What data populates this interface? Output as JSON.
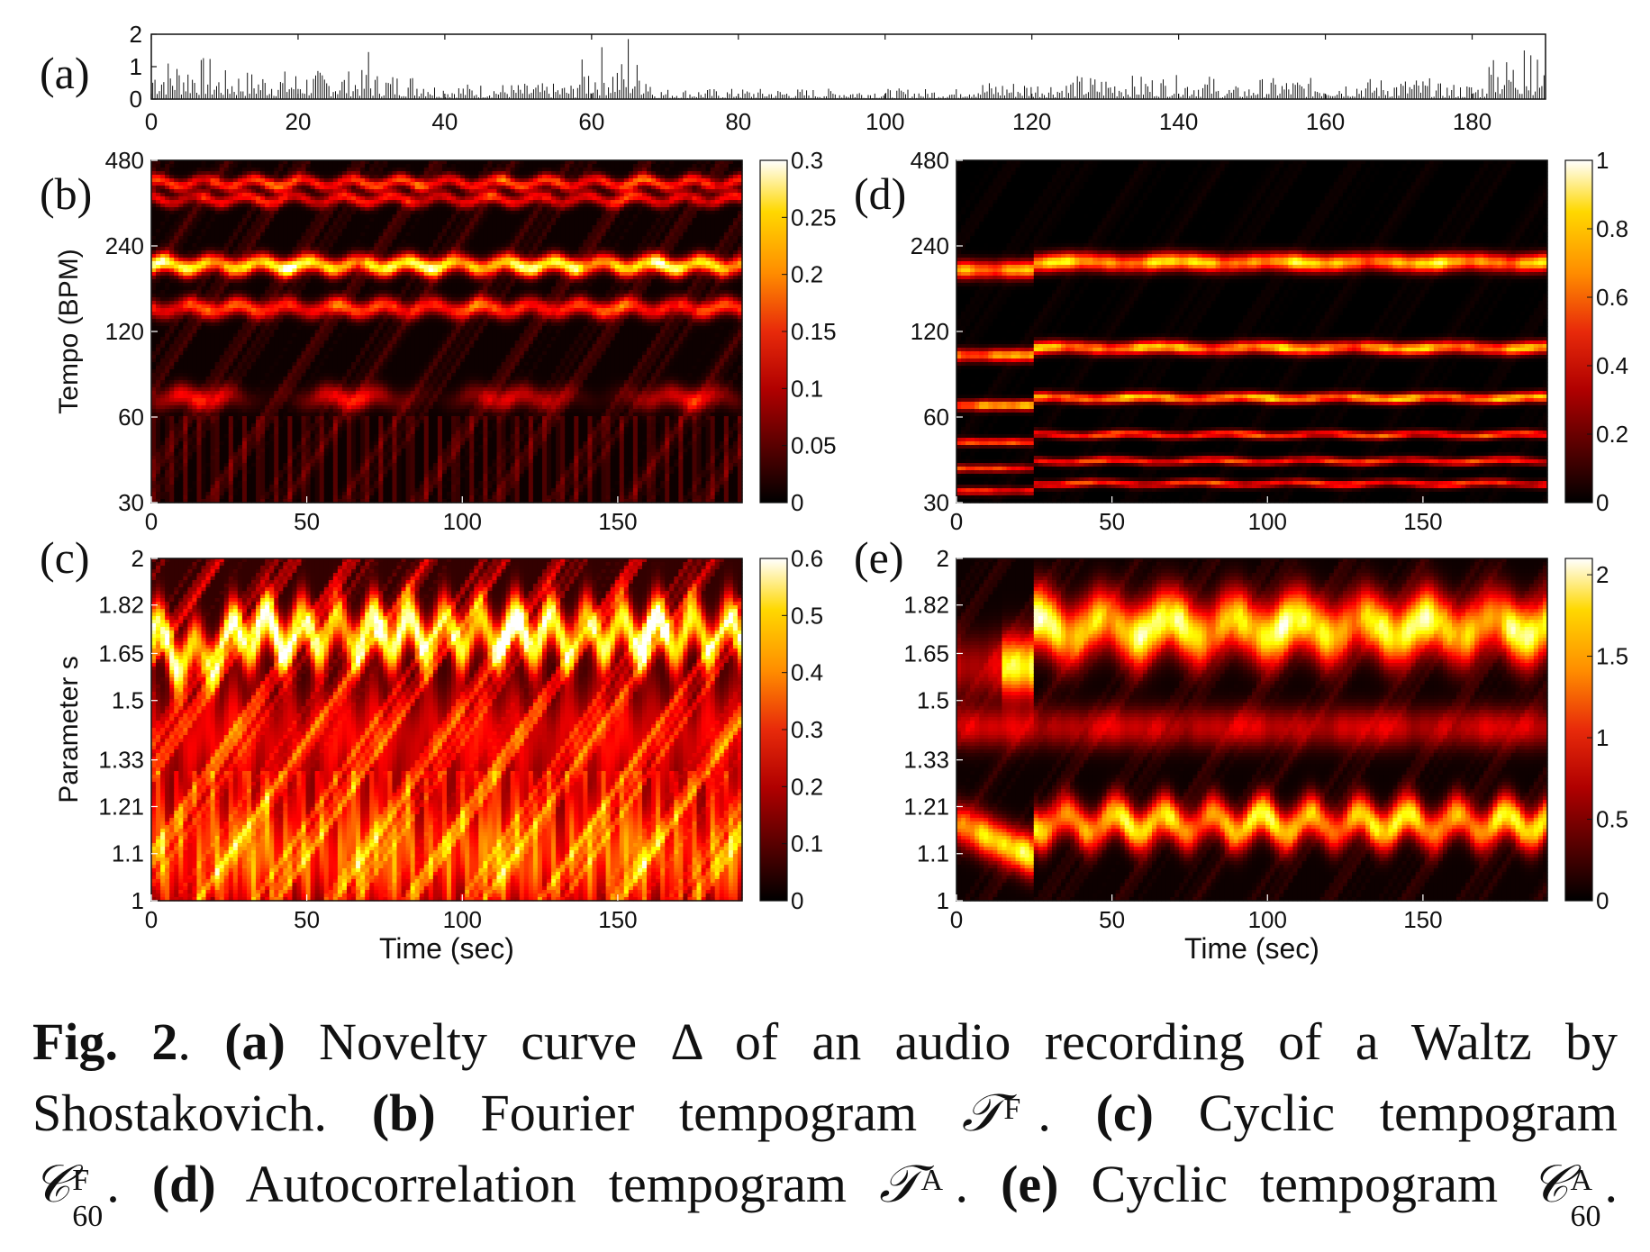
{
  "figure": {
    "panel_labels": [
      "(a)",
      "(b)",
      "(c)",
      "(d)",
      "(e)"
    ],
    "caption": {
      "fig_label": "Fig. 2",
      "line1": [
        {
          "t": ".  ",
          "b": false
        },
        {
          "t": "(a)",
          "b": true
        },
        {
          "t": " Novelty curve Δ of an audio recording of a Waltz by",
          "b": false
        }
      ],
      "line2": [
        {
          "t": "Shostakovich.  ",
          "b": false
        },
        {
          "t": "(b)",
          "b": true
        },
        {
          "t": " Fourier tempogram ",
          "b": false
        },
        {
          "t": "𝒯",
          "m": true,
          "sup": "F"
        },
        {
          "t": ". ",
          "b": false
        },
        {
          "t": "(c)",
          "b": true
        },
        {
          "t": " Cyclic tempogram",
          "b": false
        }
      ],
      "line3": [
        {
          "t": "𝒞",
          "m": true,
          "sup": "F",
          "sub": "60"
        },
        {
          "t": ". ",
          "b": false
        },
        {
          "t": "(d)",
          "b": true
        },
        {
          "t": " Autocorrelation tempogram ",
          "b": false
        },
        {
          "t": "𝒯",
          "m": true,
          "sup": "A"
        },
        {
          "t": ". ",
          "b": false
        },
        {
          "t": "(e)",
          "b": true
        },
        {
          "t": " Cyclic tempogram ",
          "b": false
        },
        {
          "t": "𝒞",
          "m": true,
          "sup": "A",
          "sub": "60"
        },
        {
          "t": ".",
          "b": false
        }
      ]
    }
  },
  "chart_data": [
    {
      "id": "a",
      "type": "bar",
      "title": "",
      "xlabel": "",
      "ylabel": "",
      "xlim": [
        0,
        190
      ],
      "ylim": [
        0,
        2
      ],
      "xticks": [
        "0",
        "20",
        "40",
        "60",
        "80",
        "100",
        "120",
        "140",
        "160",
        "180"
      ],
      "yticks": [
        "0",
        "1",
        "2"
      ],
      "grid": false,
      "segments": [
        {
          "x0": 0,
          "x1": 8,
          "mean": 0.8
        },
        {
          "x0": 8,
          "x1": 30,
          "mean": 0.55
        },
        {
          "x0": 30,
          "x1": 38,
          "mean": 0.5
        },
        {
          "x0": 38,
          "x1": 58,
          "mean": 0.3
        },
        {
          "x0": 58,
          "x1": 68,
          "mean": 0.75
        },
        {
          "x0": 68,
          "x1": 110,
          "mean": 0.2
        },
        {
          "x0": 110,
          "x1": 125,
          "mean": 0.35
        },
        {
          "x0": 125,
          "x1": 145,
          "mean": 0.45
        },
        {
          "x0": 145,
          "x1": 150,
          "mean": 0.25
        },
        {
          "x0": 150,
          "x1": 175,
          "mean": 0.4
        },
        {
          "x0": 175,
          "x1": 182,
          "mean": 0.3
        },
        {
          "x0": 182,
          "x1": 190,
          "mean": 0.8
        }
      ],
      "peaks": [
        [
          29.5,
          1.45
        ],
        [
          61.5,
          1.6
        ],
        [
          65,
          1.85
        ],
        [
          187,
          1.5
        ],
        [
          188,
          1.35
        ],
        [
          183,
          1.2
        ]
      ]
    },
    {
      "id": "b",
      "type": "heatmap",
      "ylabel": "Tempo (BPM)",
      "xlim": [
        0,
        190
      ],
      "yscale": "log",
      "ylim": [
        30,
        480
      ],
      "xticks": [
        "0",
        "50",
        "100",
        "150"
      ],
      "yticks": [
        "30",
        "60",
        "120",
        "240",
        "480"
      ],
      "colorbar": {
        "min": 0,
        "max": 0.3,
        "ticks": [
          "0",
          "0.05",
          "0.1",
          "0.15",
          "0.2",
          "0.25",
          "0.3"
        ]
      },
      "bands": [
        {
          "tempo": 205,
          "intensity": 0.95,
          "width": 0.07
        },
        {
          "tempo": 400,
          "intensity": 0.55,
          "width": 0.05
        },
        {
          "tempo": 350,
          "intensity": 0.45,
          "width": 0.05
        },
        {
          "tempo": 145,
          "intensity": 0.55,
          "width": 0.07
        },
        {
          "tempo": 70,
          "intensity": 0.4,
          "width": 0.09
        }
      ]
    },
    {
      "id": "c",
      "type": "heatmap",
      "ylabel": "Parameter s",
      "xlim": [
        0,
        190
      ],
      "yscale": "log",
      "ylim": [
        1,
        2
      ],
      "xticks": [
        "0",
        "50",
        "100",
        "150"
      ],
      "yticks": [
        "1",
        "1.1",
        "1.21",
        "1.33",
        "1.5",
        "1.65",
        "1.82",
        "2"
      ],
      "colorbar": {
        "min": 0,
        "max": 0.6,
        "ticks": [
          "0",
          "0.1",
          "0.2",
          "0.3",
          "0.4",
          "0.5",
          "0.6"
        ]
      },
      "bands": [
        {
          "s": 1.72,
          "intensity": 0.95,
          "width": 0.05
        },
        {
          "s": 1.1,
          "intensity": 0.5,
          "width": 0.12
        },
        {
          "s": 1.4,
          "intensity": 0.35,
          "width": 0.1
        }
      ]
    },
    {
      "id": "d",
      "type": "heatmap",
      "ylabel": "",
      "xlim": [
        0,
        190
      ],
      "yscale": "log",
      "ylim": [
        30,
        480
      ],
      "xticks": [
        "0",
        "50",
        "100",
        "150"
      ],
      "yticks": [
        "30",
        "60",
        "120",
        "240",
        "480"
      ],
      "colorbar": {
        "min": 0,
        "max": 1,
        "ticks": [
          "0",
          "0.2",
          "0.4",
          "0.6",
          "0.8",
          "1"
        ]
      },
      "bands": [
        {
          "tempo": 210,
          "intensity": 0.85,
          "width": 0.07
        },
        {
          "tempo": 105,
          "intensity": 0.8,
          "width": 0.05
        },
        {
          "tempo": 70,
          "intensity": 0.8,
          "width": 0.04
        },
        {
          "tempo": 52,
          "intensity": 0.6,
          "width": 0.03
        },
        {
          "tempo": 42,
          "intensity": 0.55,
          "width": 0.03
        },
        {
          "tempo": 35,
          "intensity": 0.55,
          "width": 0.03
        }
      ]
    },
    {
      "id": "e",
      "type": "heatmap",
      "ylabel": "",
      "xlim": [
        0,
        190
      ],
      "yscale": "log",
      "ylim": [
        1,
        2
      ],
      "xticks": [
        "0",
        "50",
        "100",
        "150"
      ],
      "yticks": [
        "1",
        "1.1",
        "1.21",
        "1.33",
        "1.5",
        "1.65",
        "1.82",
        "2"
      ],
      "colorbar": {
        "min": 0,
        "max": 2.1,
        "ticks": [
          "0",
          "0.5",
          "1",
          "1.5",
          "2"
        ]
      },
      "bands": [
        {
          "s": 1.74,
          "intensity": 0.95,
          "width": 0.06
        },
        {
          "s": 1.17,
          "intensity": 0.85,
          "width": 0.04
        },
        {
          "s": 1.42,
          "intensity": 0.35,
          "width": 0.04
        }
      ]
    }
  ]
}
